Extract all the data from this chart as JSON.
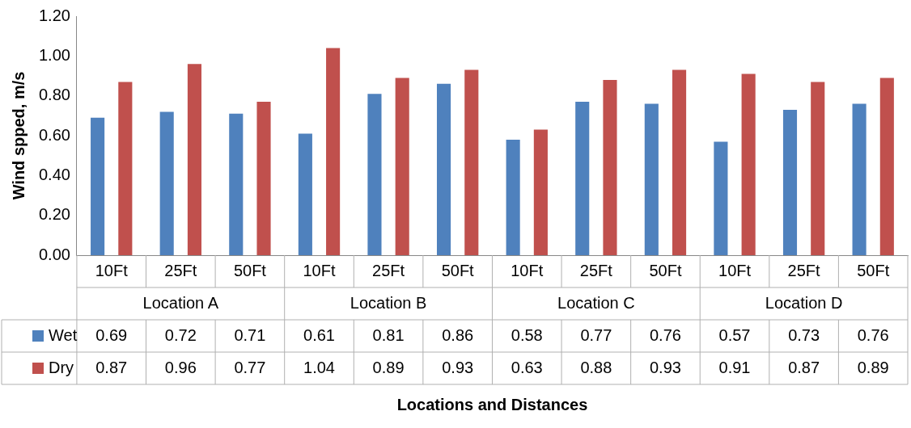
{
  "chart_data": {
    "type": "bar",
    "ylabel": "Wind spped, m/s",
    "categories": [
      "10Ft",
      "25Ft",
      "50Ft",
      "10Ft",
      "25Ft",
      "50Ft",
      "10Ft",
      "25Ft",
      "50Ft",
      "10Ft",
      "25Ft",
      "50Ft"
    ],
    "annotations": [
      "Location A",
      "Location B",
      "Location C",
      "Location D",
      "Locations and Distances"
    ],
    "series": [
      {
        "name": "Wet",
        "color": "#4f81bd",
        "values": [
          0.69,
          0.72,
          0.71,
          0.61,
          0.81,
          0.86,
          0.58,
          0.77,
          0.76,
          0.57,
          0.73,
          0.76
        ]
      },
      {
        "name": "Dry",
        "color": "#c0504d",
        "values": [
          0.87,
          0.96,
          0.77,
          1.04,
          0.89,
          0.93,
          0.63,
          0.88,
          0.93,
          0.91,
          0.87,
          0.89
        ]
      }
    ],
    "ylim": [
      0,
      1.2
    ],
    "yticks": [
      {
        "value": 0,
        "label": "0.00"
      },
      {
        "value": 0.2,
        "label": "0.20"
      },
      {
        "value": 0.4,
        "label": "0.40"
      },
      {
        "value": 0.6,
        "label": "0.60"
      },
      {
        "value": 0.8,
        "label": "0.80"
      },
      {
        "value": 1.0,
        "label": "1.00"
      },
      {
        "value": 1.2,
        "label": "1.20"
      }
    ],
    "data_labels": true,
    "legend": "bottom left",
    "grid": false
  }
}
